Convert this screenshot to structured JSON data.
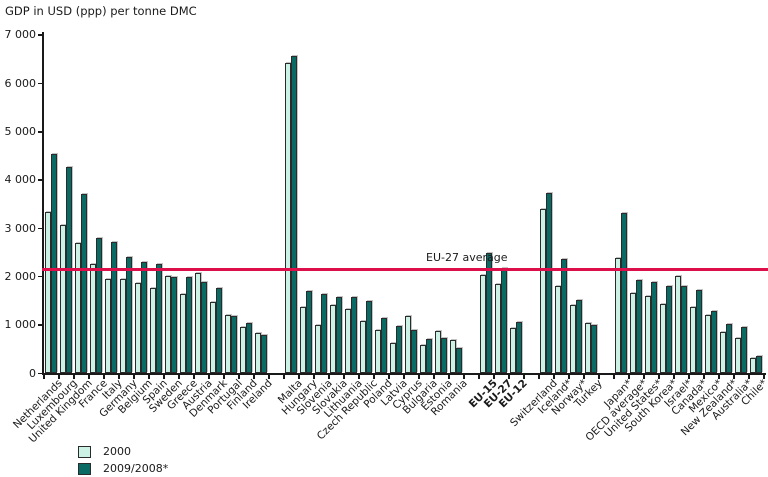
{
  "title": "GDP in USD (ppp) per tonne DMC",
  "legend": {
    "items": [
      {
        "label": "2000",
        "color": "#ccf1e5"
      },
      {
        "label": "2009/2008*",
        "color": "#0a6b64"
      }
    ]
  },
  "chart_data": {
    "type": "bar",
    "title": "GDP in USD (ppp) per tonne DMC",
    "xlabel": "",
    "ylabel": "GDP in USD (ppp) per tonne DMC",
    "ylim": [
      0,
      7000
    ],
    "grid": false,
    "legend_position": "bottom-left",
    "yticks": [
      {
        "label": "0",
        "value": 0
      },
      {
        "label": "1 000",
        "value": 1000
      },
      {
        "label": "2 000",
        "value": 2000
      },
      {
        "label": "3 000",
        "value": 3000
      },
      {
        "label": "4 000",
        "value": 4000
      },
      {
        "label": "5 000",
        "value": 5000
      },
      {
        "label": "6 000",
        "value": 6000
      },
      {
        "label": "7 000",
        "value": 7000
      }
    ],
    "categories": [
      "Netherlands",
      "Luxembourg",
      "United Kingdom",
      "France",
      "Italy",
      "Germany",
      "Belgium",
      "Spain",
      "Sweden",
      "Greece",
      "Austria",
      "Denmark",
      "Portugal",
      "Finland",
      "Ireland",
      "Malta",
      "Hungary",
      "Slovenia",
      "Slovakia",
      "Lithuania",
      "Czech Republic",
      "Poland",
      "Latvia",
      "Cyprus",
      "Bulgaria",
      "Estonia",
      "Romania",
      "EU-15",
      "EU-27",
      "EU-12",
      "Switzerland",
      "Iceland*",
      "Norway*",
      "Turkey",
      "Japan*",
      "OECD average*",
      "United States*",
      "South Korea*",
      "Israel*",
      "Canada*",
      "Mexico*",
      "New Zealand*",
      "Australia*",
      "Chile*"
    ],
    "bold_categories": [
      "EU-15",
      "EU-27",
      "EU-12"
    ],
    "group_gap_after_index": [
      14,
      26,
      29,
      33
    ],
    "series": [
      {
        "name": "2000",
        "color": "#ccf1e5",
        "values": [
          3330,
          3070,
          2700,
          2250,
          1950,
          1940,
          1870,
          1760,
          2000,
          1630,
          2080,
          1480,
          1210,
          950,
          830,
          6420,
          1370,
          990,
          1400,
          1330,
          1070,
          880,
          620,
          1180,
          570,
          860,
          680,
          2020,
          1850,
          930,
          3390,
          1810,
          1410,
          1040,
          2380,
          1650,
          1600,
          1420,
          2000,
          1370,
          1200,
          850,
          730,
          315
        ]
      },
      {
        "name": "2009/2008*",
        "color": "#0a6b64",
        "values": [
          4530,
          4270,
          3710,
          2790,
          2720,
          2410,
          2300,
          2260,
          1990,
          1980,
          1890,
          1760,
          1190,
          1040,
          780,
          6560,
          1700,
          1640,
          1570,
          1580,
          1500,
          1140,
          970,
          900,
          710,
          730,
          510,
          2480,
          2170,
          1060,
          3720,
          2360,
          1520,
          990,
          3320,
          1920,
          1890,
          1800,
          1800,
          1710,
          1290,
          1020,
          950,
          345
        ]
      }
    ],
    "reference_line": {
      "label": "EU-27 average",
      "value": 2150,
      "color": "#dc0f4b"
    }
  }
}
